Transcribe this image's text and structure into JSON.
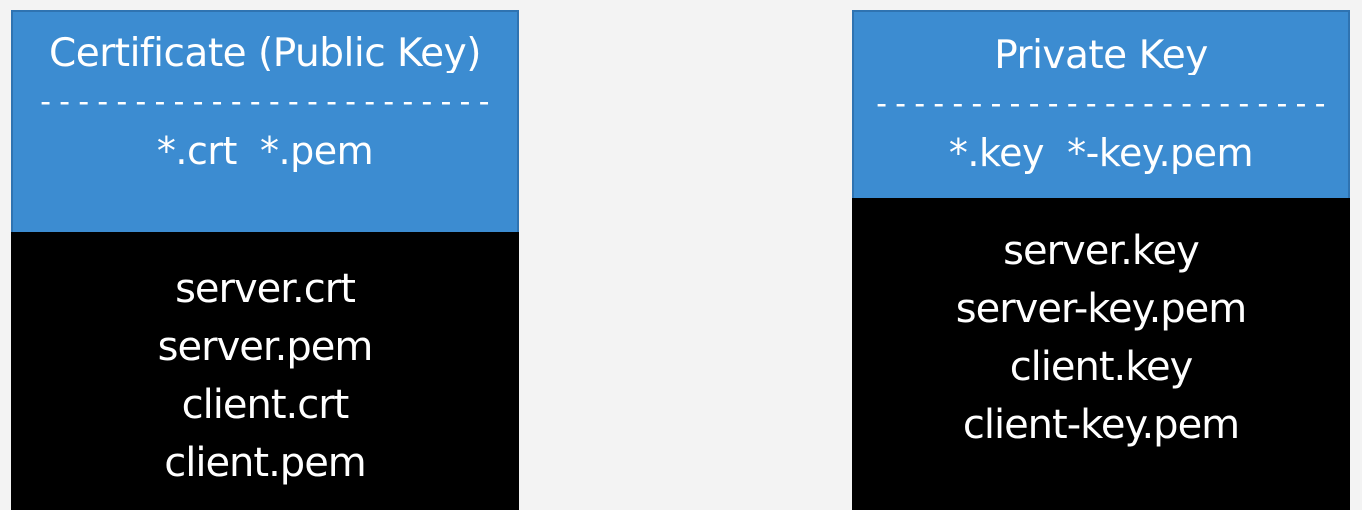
{
  "certificate_panel": {
    "title": "Certificate (Public Key)",
    "divider": "------------------------",
    "extensions": "*.crt  *.pem",
    "files": [
      "server.crt",
      "server.pem",
      "client.crt",
      "client.pem"
    ]
  },
  "private_key_panel": {
    "title": "Private Key",
    "divider": "------------------------",
    "extensions": "*.key  *-key.pem",
    "files": [
      "server.key",
      "server-key.pem",
      "client.key",
      "client-key.pem"
    ]
  },
  "colors": {
    "header_blue": "#3c8cd1",
    "body_black": "#000000",
    "background": "#f3f3f3",
    "text": "#ffffff"
  }
}
